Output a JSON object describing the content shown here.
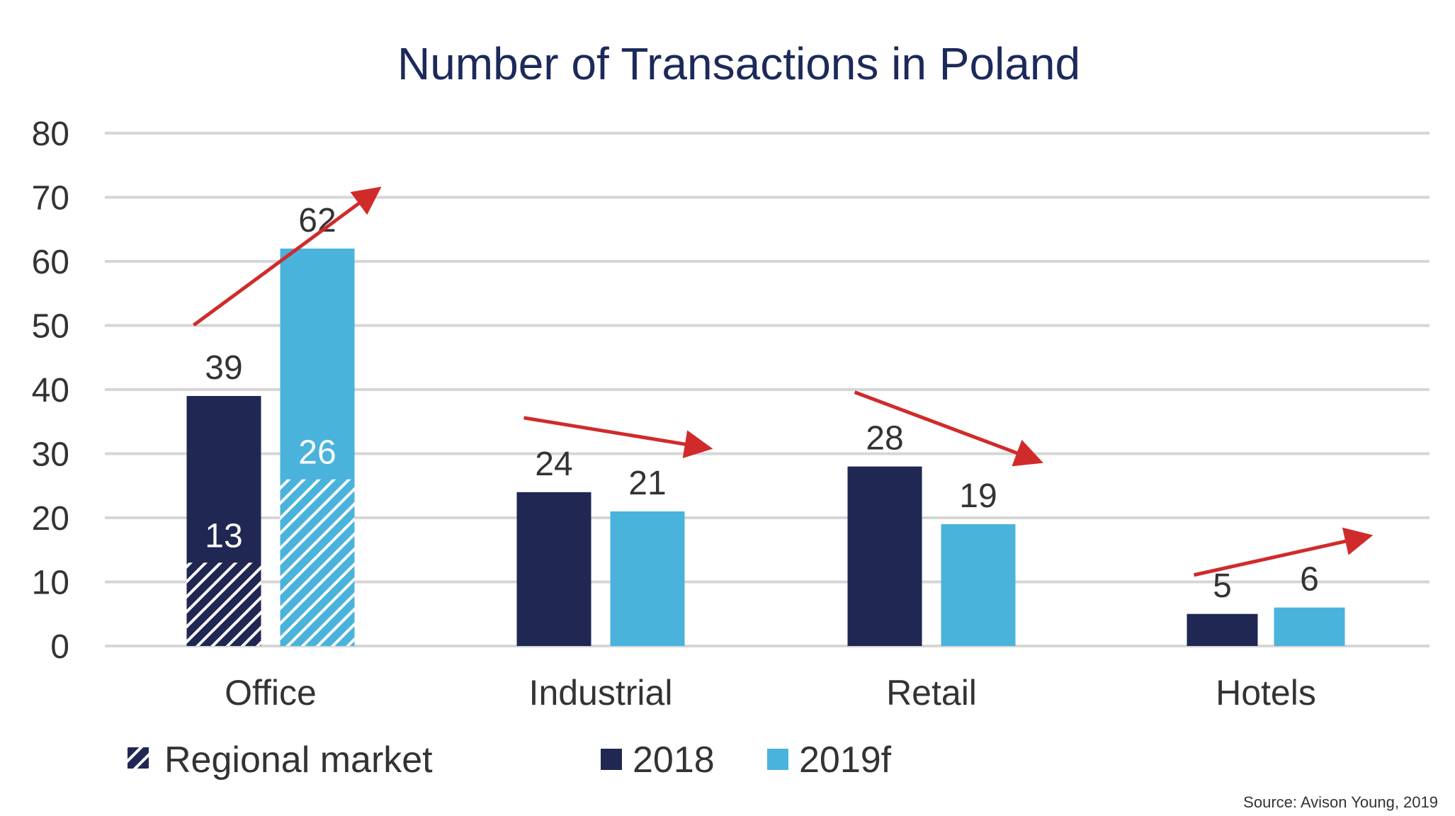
{
  "chart_data": {
    "type": "bar",
    "title": "Number of Transactions in Poland",
    "categories": [
      "Office",
      "Industrial",
      "Retail",
      "Hotels"
    ],
    "series": [
      {
        "name": "2018",
        "values": [
          39,
          24,
          28,
          5
        ],
        "color": "#1f2752"
      },
      {
        "name": "2019f",
        "values": [
          62,
          21,
          19,
          6
        ],
        "color": "#4ab3dc"
      }
    ],
    "regional_market": {
      "name": "Regional market",
      "category": "Office",
      "values": [
        13,
        26
      ]
    },
    "ylim": [
      0,
      80
    ],
    "yticks": [
      0,
      10,
      20,
      30,
      40,
      50,
      60,
      70,
      80
    ],
    "grid": true,
    "legend_position": "bottom",
    "trend_arrows": true,
    "arrow_color": "#d02b2b",
    "source": "Source: Avison Young, 2019"
  }
}
